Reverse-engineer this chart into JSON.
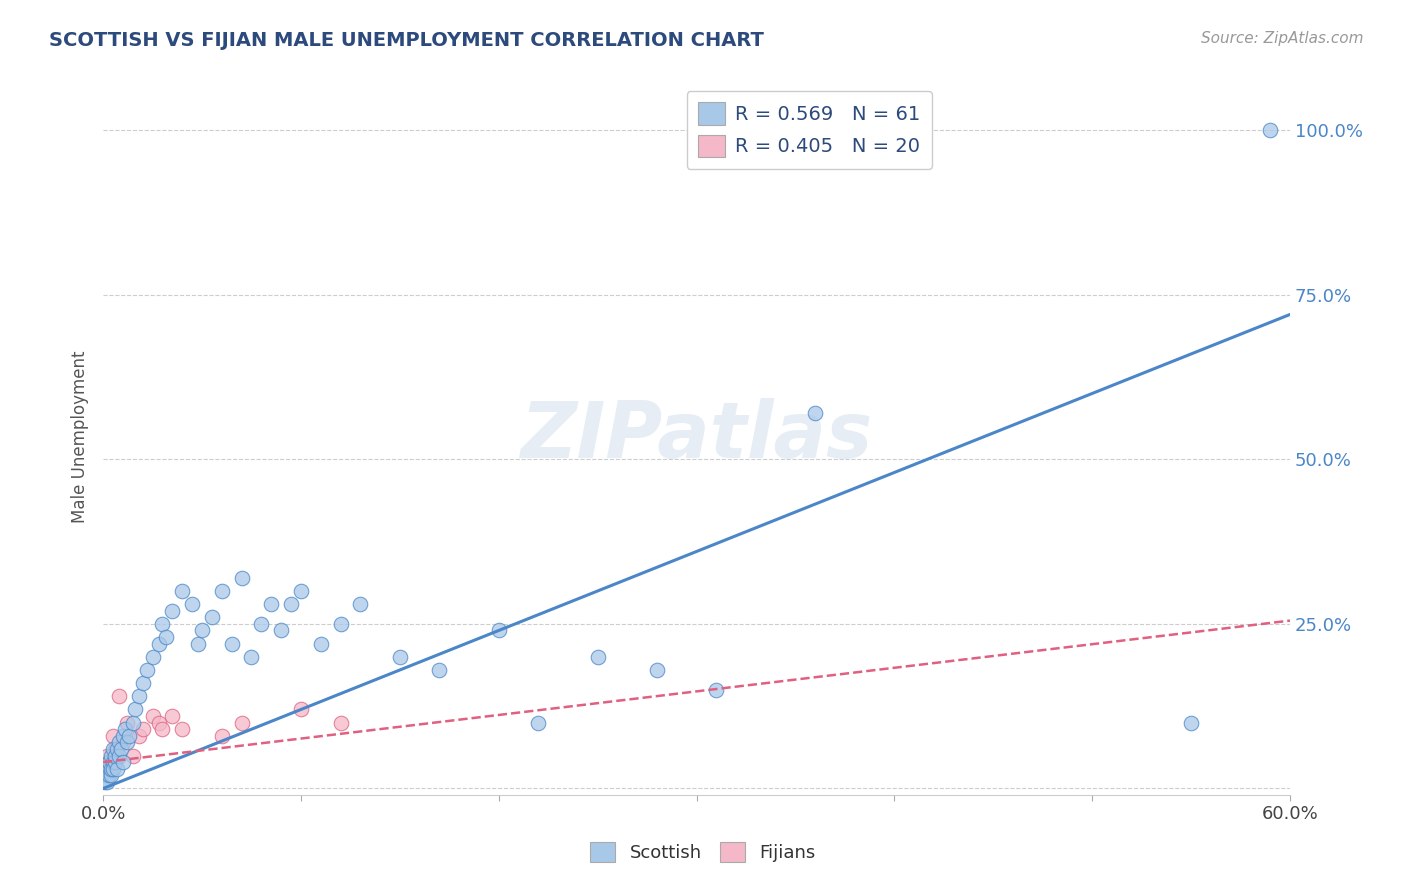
{
  "title": "SCOTTISH VS FIJIAN MALE UNEMPLOYMENT CORRELATION CHART",
  "source": "Source: ZipAtlas.com",
  "ylabel": "Male Unemployment",
  "xlim": [
    0,
    0.6
  ],
  "ylim": [
    -0.01,
    1.08
  ],
  "yticks": [
    0.0,
    0.25,
    0.5,
    0.75,
    1.0
  ],
  "ytick_labels": [
    "",
    "25.0%",
    "50.0%",
    "75.0%",
    "100.0%"
  ],
  "legend_r1": "R = 0.569   N = 61",
  "legend_r2": "R = 0.405   N = 20",
  "scottish_color": "#a8c8e8",
  "fijian_color": "#f4b8c8",
  "line_blue": "#4a86c8",
  "line_pink": "#e06080",
  "background": "#ffffff",
  "grid_color": "#c8c8c8",
  "title_color": "#2c4a7c",
  "watermark": "ZIPatlas",
  "blue_line_x0": 0.0,
  "blue_line_y0": 0.0,
  "blue_line_x1": 0.6,
  "blue_line_y1": 0.72,
  "pink_line_x0": 0.0,
  "pink_line_y0": 0.04,
  "pink_line_x1": 0.6,
  "pink_line_y1": 0.255,
  "scottish_x": [
    0.001,
    0.002,
    0.002,
    0.003,
    0.003,
    0.003,
    0.004,
    0.004,
    0.004,
    0.005,
    0.005,
    0.005,
    0.006,
    0.006,
    0.007,
    0.007,
    0.008,
    0.008,
    0.009,
    0.01,
    0.01,
    0.011,
    0.012,
    0.013,
    0.015,
    0.016,
    0.018,
    0.02,
    0.022,
    0.025,
    0.028,
    0.03,
    0.032,
    0.035,
    0.04,
    0.045,
    0.048,
    0.05,
    0.055,
    0.06,
    0.065,
    0.07,
    0.075,
    0.08,
    0.085,
    0.09,
    0.095,
    0.1,
    0.11,
    0.12,
    0.13,
    0.15,
    0.17,
    0.2,
    0.22,
    0.25,
    0.28,
    0.31,
    0.36,
    0.55,
    0.59
  ],
  "scottish_y": [
    0.01,
    0.02,
    0.01,
    0.03,
    0.02,
    0.04,
    0.02,
    0.03,
    0.05,
    0.04,
    0.03,
    0.06,
    0.04,
    0.05,
    0.06,
    0.03,
    0.07,
    0.05,
    0.06,
    0.08,
    0.04,
    0.09,
    0.07,
    0.08,
    0.1,
    0.12,
    0.14,
    0.16,
    0.18,
    0.2,
    0.22,
    0.25,
    0.23,
    0.27,
    0.3,
    0.28,
    0.22,
    0.24,
    0.26,
    0.3,
    0.22,
    0.32,
    0.2,
    0.25,
    0.28,
    0.24,
    0.28,
    0.3,
    0.22,
    0.25,
    0.28,
    0.2,
    0.18,
    0.24,
    0.1,
    0.2,
    0.18,
    0.15,
    0.57,
    0.1,
    1.0
  ],
  "fijian_x": [
    0.001,
    0.002,
    0.003,
    0.005,
    0.006,
    0.008,
    0.01,
    0.012,
    0.015,
    0.018,
    0.02,
    0.025,
    0.028,
    0.03,
    0.035,
    0.04,
    0.06,
    0.07,
    0.1,
    0.12
  ],
  "fijian_y": [
    0.03,
    0.05,
    0.04,
    0.08,
    0.06,
    0.14,
    0.07,
    0.1,
    0.05,
    0.08,
    0.09,
    0.11,
    0.1,
    0.09,
    0.11,
    0.09,
    0.08,
    0.1,
    0.12,
    0.1
  ]
}
